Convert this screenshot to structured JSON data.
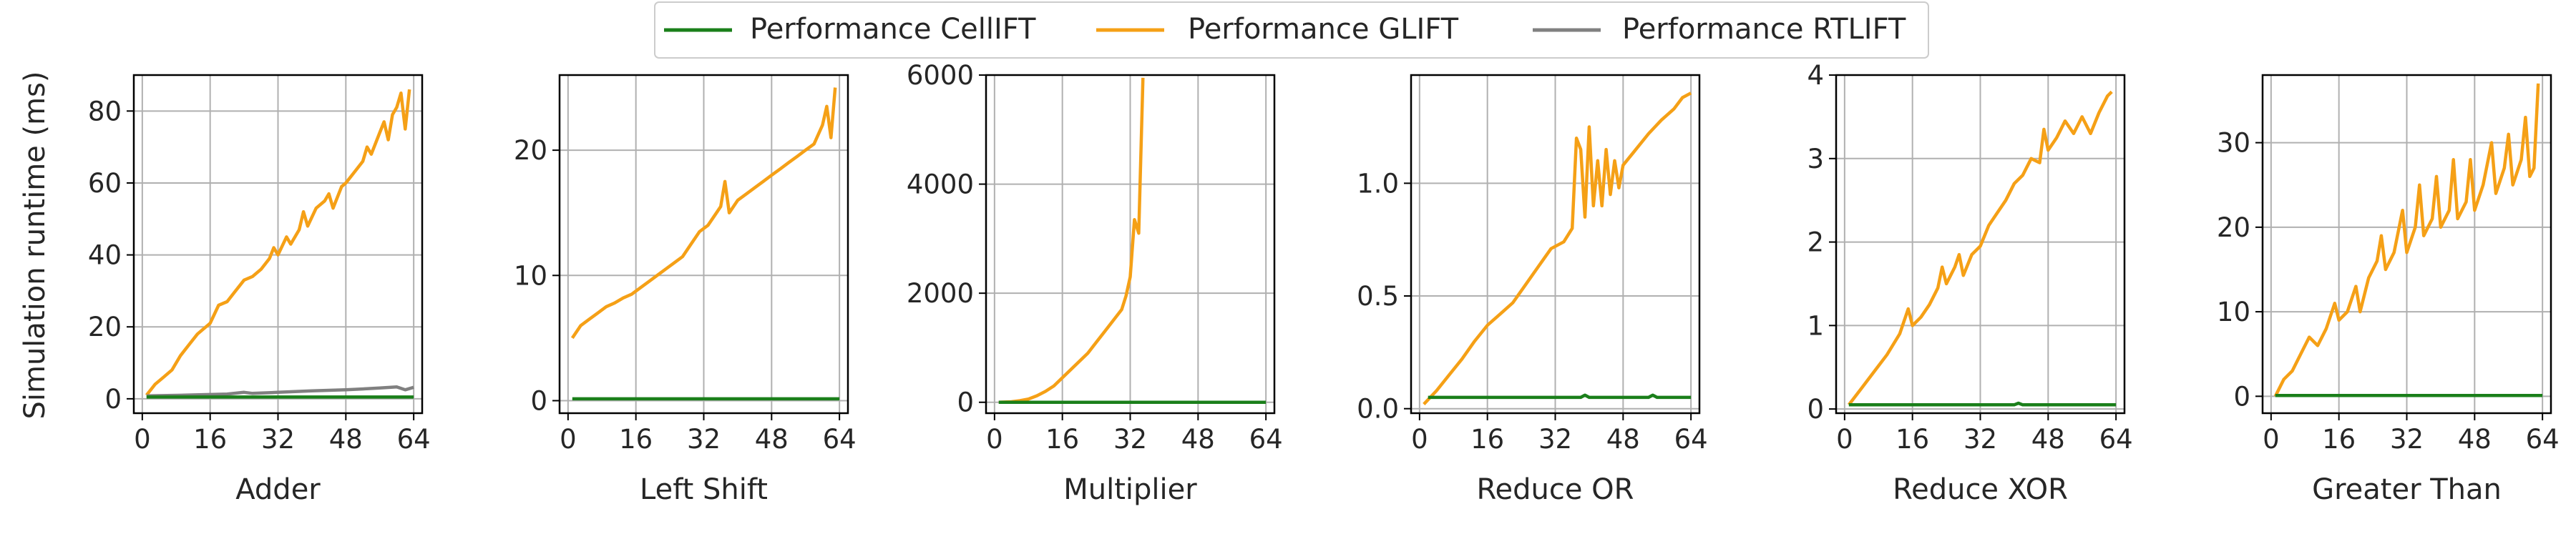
{
  "figure": {
    "ylabel": "Simulation runtime (ms)",
    "legend": [
      {
        "name": "Performance CellIFT",
        "color": "#1a7f1a"
      },
      {
        "name": "Performance GLIFT",
        "color": "#f5a016"
      },
      {
        "name": "Performance RTLIFT",
        "color": "#808080"
      }
    ],
    "legend_placement": "top-center"
  },
  "chart_data": [
    {
      "type": "line",
      "title": "Adder",
      "xlabel": "Adder",
      "xlim": [
        -2,
        66
      ],
      "ylim": [
        -4,
        90
      ],
      "xticks": [
        0,
        16,
        32,
        48,
        64
      ],
      "yticks": [
        0,
        20,
        40,
        60,
        80
      ],
      "grid": true,
      "series": [
        {
          "name": "Performance CellIFT",
          "color": "#1a7f1a",
          "points": [
            [
              1,
              0.5
            ],
            [
              64,
              0.5
            ]
          ]
        },
        {
          "name": "Performance GLIFT",
          "color": "#f5a016",
          "points": [
            [
              1,
              1
            ],
            [
              3,
              4
            ],
            [
              5,
              6
            ],
            [
              7,
              8
            ],
            [
              9,
              12
            ],
            [
              11,
              15
            ],
            [
              13,
              18
            ],
            [
              15,
              20
            ],
            [
              16,
              21
            ],
            [
              18,
              26
            ],
            [
              20,
              27
            ],
            [
              22,
              30
            ],
            [
              24,
              33
            ],
            [
              26,
              34
            ],
            [
              28,
              36
            ],
            [
              30,
              39
            ],
            [
              31,
              42
            ],
            [
              32,
              40
            ],
            [
              34,
              45
            ],
            [
              35,
              43
            ],
            [
              37,
              47
            ],
            [
              38,
              52
            ],
            [
              39,
              48
            ],
            [
              41,
              53
            ],
            [
              43,
              55
            ],
            [
              44,
              57
            ],
            [
              45,
              53
            ],
            [
              47,
              59
            ],
            [
              48,
              60
            ],
            [
              50,
              63
            ],
            [
              52,
              66
            ],
            [
              53,
              70
            ],
            [
              54,
              68
            ],
            [
              56,
              74
            ],
            [
              57,
              77
            ],
            [
              58,
              72
            ],
            [
              59,
              79
            ],
            [
              60,
              81
            ],
            [
              61,
              85
            ],
            [
              62,
              75
            ],
            [
              63,
              86
            ]
          ]
        },
        {
          "name": "Performance RTLIFT",
          "color": "#808080",
          "points": [
            [
              1,
              0.8
            ],
            [
              10,
              1.0
            ],
            [
              20,
              1.3
            ],
            [
              24,
              1.8
            ],
            [
              26,
              1.5
            ],
            [
              32,
              1.8
            ],
            [
              40,
              2.2
            ],
            [
              48,
              2.5
            ],
            [
              56,
              3.0
            ],
            [
              60,
              3.3
            ],
            [
              62,
              2.5
            ],
            [
              64,
              3.2
            ]
          ]
        }
      ]
    },
    {
      "type": "line",
      "title": "Left Shift",
      "xlabel": "Left Shift",
      "xlim": [
        -2,
        66
      ],
      "ylim": [
        -1,
        26
      ],
      "xticks": [
        0,
        16,
        32,
        48,
        64
      ],
      "yticks": [
        0,
        10,
        20
      ],
      "grid": true,
      "series": [
        {
          "name": "Performance CellIFT",
          "color": "#1a7f1a",
          "points": [
            [
              1,
              0.15
            ],
            [
              64,
              0.15
            ]
          ]
        },
        {
          "name": "Performance GLIFT",
          "color": "#f5a016",
          "points": [
            [
              1,
              5.0
            ],
            [
              3,
              6.0
            ],
            [
              5,
              6.5
            ],
            [
              7,
              7.0
            ],
            [
              9,
              7.5
            ],
            [
              11,
              7.8
            ],
            [
              13,
              8.2
            ],
            [
              15,
              8.5
            ],
            [
              17,
              9.0
            ],
            [
              19,
              9.5
            ],
            [
              21,
              10.0
            ],
            [
              23,
              10.5
            ],
            [
              25,
              11.0
            ],
            [
              27,
              11.5
            ],
            [
              29,
              12.5
            ],
            [
              31,
              13.5
            ],
            [
              33,
              14.0
            ],
            [
              35,
              15.0
            ],
            [
              36,
              15.5
            ],
            [
              37,
              17.5
            ],
            [
              38,
              15.0
            ],
            [
              40,
              16.0
            ],
            [
              42,
              16.5
            ],
            [
              44,
              17.0
            ],
            [
              46,
              17.5
            ],
            [
              48,
              18.0
            ],
            [
              50,
              18.5
            ],
            [
              52,
              19.0
            ],
            [
              54,
              19.5
            ],
            [
              56,
              20.0
            ],
            [
              58,
              20.5
            ],
            [
              60,
              22.0
            ],
            [
              61,
              23.5
            ],
            [
              62,
              21.0
            ],
            [
              63,
              25.0
            ]
          ]
        }
      ]
    },
    {
      "type": "line",
      "title": "Multiplier",
      "xlabel": "Multiplier",
      "xlim": [
        -2,
        66
      ],
      "ylim": [
        -200,
        6000
      ],
      "xticks": [
        0,
        16,
        32,
        48,
        64
      ],
      "yticks": [
        0,
        2000,
        4000,
        6000
      ],
      "grid": true,
      "series": [
        {
          "name": "Performance CellIFT",
          "color": "#1a7f1a",
          "points": [
            [
              1,
              0
            ],
            [
              64,
              0
            ]
          ]
        },
        {
          "name": "Performance GLIFT",
          "color": "#f5a016",
          "points": [
            [
              1,
              0
            ],
            [
              4,
              10
            ],
            [
              6,
              30
            ],
            [
              8,
              60
            ],
            [
              10,
              120
            ],
            [
              12,
              200
            ],
            [
              14,
              300
            ],
            [
              16,
              450
            ],
            [
              18,
              600
            ],
            [
              20,
              750
            ],
            [
              22,
              900
            ],
            [
              24,
              1100
            ],
            [
              26,
              1300
            ],
            [
              28,
              1500
            ],
            [
              30,
              1700
            ],
            [
              31,
              1950
            ],
            [
              32,
              2300
            ],
            [
              33,
              3350
            ],
            [
              34,
              3100
            ],
            [
              35,
              5950
            ]
          ]
        },
        {
          "name": "Performance RTLIFT",
          "color": "#808080",
          "points": [
            [
              1,
              0
            ],
            [
              64,
              0
            ]
          ]
        }
      ]
    },
    {
      "type": "line",
      "title": "Reduce OR",
      "xlabel": "Reduce OR",
      "xlim": [
        -2,
        66
      ],
      "ylim": [
        -0.02,
        1.48
      ],
      "xticks": [
        0,
        16,
        32,
        48,
        64
      ],
      "yticks": [
        0.0,
        0.5,
        1.0
      ],
      "grid": true,
      "series": [
        {
          "name": "Performance CellIFT",
          "color": "#1a7f1a",
          "points": [
            [
              2,
              0.05
            ],
            [
              38,
              0.05
            ],
            [
              39,
              0.06
            ],
            [
              40,
              0.05
            ],
            [
              54,
              0.05
            ],
            [
              55,
              0.06
            ],
            [
              56,
              0.05
            ],
            [
              64,
              0.05
            ]
          ]
        },
        {
          "name": "Performance GLIFT",
          "color": "#f5a016",
          "points": [
            [
              1,
              0.02
            ],
            [
              4,
              0.08
            ],
            [
              7,
              0.15
            ],
            [
              10,
              0.22
            ],
            [
              13,
              0.3
            ],
            [
              16,
              0.37
            ],
            [
              19,
              0.42
            ],
            [
              22,
              0.47
            ],
            [
              25,
              0.55
            ],
            [
              28,
              0.63
            ],
            [
              31,
              0.71
            ],
            [
              34,
              0.74
            ],
            [
              36,
              0.8
            ],
            [
              37,
              1.2
            ],
            [
              38,
              1.15
            ],
            [
              39,
              0.85
            ],
            [
              40,
              1.25
            ],
            [
              41,
              0.9
            ],
            [
              42,
              1.1
            ],
            [
              43,
              0.9
            ],
            [
              44,
              1.15
            ],
            [
              45,
              0.95
            ],
            [
              46,
              1.1
            ],
            [
              47,
              0.98
            ],
            [
              48,
              1.08
            ],
            [
              51,
              1.15
            ],
            [
              54,
              1.22
            ],
            [
              57,
              1.28
            ],
            [
              60,
              1.33
            ],
            [
              62,
              1.38
            ],
            [
              64,
              1.4
            ]
          ]
        }
      ]
    },
    {
      "type": "line",
      "title": "Reduce XOR",
      "xlabel": "Reduce XOR",
      "xlim": [
        -2,
        66
      ],
      "ylim": [
        -0.05,
        4
      ],
      "xticks": [
        0,
        16,
        32,
        48,
        64
      ],
      "yticks": [
        0,
        1,
        2,
        3,
        4
      ],
      "grid": true,
      "series": [
        {
          "name": "Performance CellIFT",
          "color": "#1a7f1a",
          "points": [
            [
              1,
              0.05
            ],
            [
              40,
              0.05
            ],
            [
              41,
              0.07
            ],
            [
              42,
              0.05
            ],
            [
              64,
              0.05
            ]
          ]
        },
        {
          "name": "Performance GLIFT",
          "color": "#f5a016",
          "points": [
            [
              1,
              0.05
            ],
            [
              4,
              0.25
            ],
            [
              7,
              0.45
            ],
            [
              10,
              0.65
            ],
            [
              13,
              0.9
            ],
            [
              15,
              1.2
            ],
            [
              16,
              1.0
            ],
            [
              18,
              1.1
            ],
            [
              20,
              1.25
            ],
            [
              22,
              1.45
            ],
            [
              23,
              1.7
            ],
            [
              24,
              1.5
            ],
            [
              26,
              1.7
            ],
            [
              27,
              1.85
            ],
            [
              28,
              1.6
            ],
            [
              30,
              1.85
            ],
            [
              32,
              1.95
            ],
            [
              34,
              2.2
            ],
            [
              36,
              2.35
            ],
            [
              38,
              2.5
            ],
            [
              40,
              2.7
            ],
            [
              42,
              2.8
            ],
            [
              44,
              3.0
            ],
            [
              46,
              2.95
            ],
            [
              47,
              3.35
            ],
            [
              48,
              3.1
            ],
            [
              50,
              3.25
            ],
            [
              52,
              3.45
            ],
            [
              54,
              3.3
            ],
            [
              56,
              3.5
            ],
            [
              58,
              3.3
            ],
            [
              60,
              3.55
            ],
            [
              62,
              3.75
            ],
            [
              63,
              3.8
            ]
          ]
        }
      ]
    },
    {
      "type": "line",
      "title": "Greater Than",
      "xlabel": "Greater Than",
      "xlim": [
        -2,
        66
      ],
      "ylim": [
        -2,
        38
      ],
      "xticks": [
        0,
        16,
        32,
        48,
        64
      ],
      "yticks": [
        0,
        10,
        20,
        30
      ],
      "grid": true,
      "series": [
        {
          "name": "Performance CellIFT",
          "color": "#1a7f1a",
          "points": [
            [
              1,
              0.1
            ],
            [
              64,
              0.1
            ]
          ]
        },
        {
          "name": "Performance GLIFT",
          "color": "#f5a016",
          "points": [
            [
              1,
              0
            ],
            [
              3,
              2
            ],
            [
              5,
              3
            ],
            [
              7,
              5
            ],
            [
              9,
              7
            ],
            [
              11,
              6
            ],
            [
              13,
              8
            ],
            [
              15,
              11
            ],
            [
              16,
              9
            ],
            [
              18,
              10
            ],
            [
              20,
              13
            ],
            [
              21,
              10
            ],
            [
              23,
              14
            ],
            [
              25,
              16
            ],
            [
              26,
              19
            ],
            [
              27,
              15
            ],
            [
              29,
              17
            ],
            [
              31,
              22
            ],
            [
              32,
              17
            ],
            [
              34,
              20
            ],
            [
              35,
              25
            ],
            [
              36,
              19
            ],
            [
              38,
              21
            ],
            [
              39,
              26
            ],
            [
              40,
              20
            ],
            [
              42,
              22
            ],
            [
              43,
              28
            ],
            [
              44,
              21
            ],
            [
              46,
              23
            ],
            [
              47,
              28
            ],
            [
              48,
              22
            ],
            [
              50,
              25
            ],
            [
              52,
              30
            ],
            [
              53,
              24
            ],
            [
              55,
              27
            ],
            [
              56,
              31
            ],
            [
              57,
              25
            ],
            [
              59,
              28
            ],
            [
              60,
              33
            ],
            [
              61,
              26
            ],
            [
              62,
              27
            ],
            [
              63,
              37
            ]
          ]
        }
      ]
    }
  ]
}
